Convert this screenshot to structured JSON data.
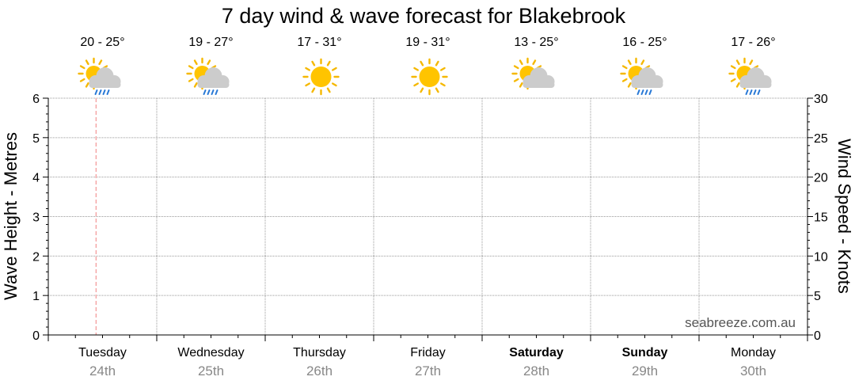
{
  "chart_data": {
    "type": "line",
    "title": "7 day wind & wave forecast for Blakebrook",
    "location": "Blakebrook",
    "ylabel_left": "Wave Height - Metres",
    "ylabel_right": "Wind Speed - Knots",
    "ylim_left": [
      0,
      6
    ],
    "ylim_right": [
      0,
      30
    ],
    "yticks_left": [
      "0",
      "1",
      "2",
      "3",
      "4",
      "5",
      "6"
    ],
    "yticks_right": [
      "0",
      "5",
      "10",
      "15",
      "20",
      "25",
      "30"
    ],
    "grid": true,
    "series": [],
    "current_time_marker": "Tuesday",
    "days": [
      {
        "name": "Tuesday",
        "date": "24th",
        "temp": "20 - 25°",
        "icon": "sun-cloud-rain-icon",
        "bold": false
      },
      {
        "name": "Wednesday",
        "date": "25th",
        "temp": "19 - 27°",
        "icon": "sun-cloud-rain-icon",
        "bold": false
      },
      {
        "name": "Thursday",
        "date": "26th",
        "temp": "17 - 31°",
        "icon": "sun-icon",
        "bold": false
      },
      {
        "name": "Friday",
        "date": "27th",
        "temp": "19 - 31°",
        "icon": "sun-icon",
        "bold": false
      },
      {
        "name": "Saturday",
        "date": "28th",
        "temp": "13 - 25°",
        "icon": "sun-cloud-icon",
        "bold": true
      },
      {
        "name": "Sunday",
        "date": "29th",
        "temp": "16 - 25°",
        "icon": "sun-cloud-rain-icon",
        "bold": true
      },
      {
        "name": "Monday",
        "date": "30th",
        "temp": "17 - 26°",
        "icon": "sun-cloud-rain-icon",
        "bold": false
      }
    ],
    "watermark": "seabreeze.com.au"
  },
  "colors": {
    "sun": "#FFC400",
    "sun_ray": "#F5B800",
    "cloud": "#CCCCCC",
    "rain": "#2979D6",
    "grid": "#9A9A9A",
    "marker": "#F08080"
  }
}
